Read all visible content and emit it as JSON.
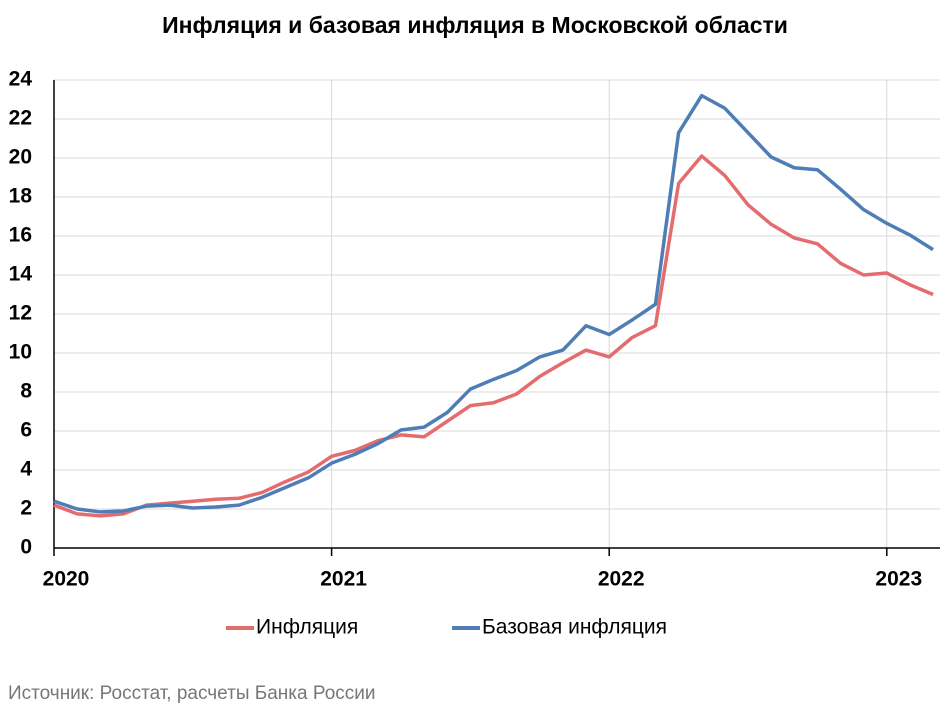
{
  "chart_data": {
    "type": "line",
    "title": "Инфляция и базовая инфляция в Московской области",
    "x": [
      0,
      1,
      2,
      3,
      4,
      5,
      6,
      7,
      8,
      9,
      10,
      11,
      12,
      13,
      14,
      15,
      16,
      17,
      18,
      19,
      20,
      21,
      22,
      23,
      24,
      25,
      26,
      27,
      28,
      29,
      30,
      31,
      32,
      33,
      34,
      35,
      36,
      37,
      38
    ],
    "series": [
      {
        "name": "Инфляция",
        "color": "#e46c6f",
        "values": [
          2.2,
          1.75,
          1.65,
          1.75,
          2.2,
          2.3,
          2.4,
          2.5,
          2.55,
          2.85,
          3.4,
          3.9,
          4.7,
          5.0,
          5.5,
          5.8,
          5.7,
          6.5,
          7.3,
          7.45,
          7.9,
          8.8,
          9.5,
          10.15,
          9.8,
          10.8,
          11.4,
          18.7,
          20.1,
          19.1,
          17.6,
          16.6,
          15.9,
          15.6,
          14.6,
          14.0,
          14.1,
          13.5,
          13.0
        ]
      },
      {
        "name": "Базовая инфляция",
        "color": "#4f7eb7",
        "values": [
          2.4,
          2.0,
          1.85,
          1.9,
          2.15,
          2.2,
          2.05,
          2.1,
          2.2,
          2.6,
          3.1,
          3.6,
          4.35,
          4.8,
          5.35,
          6.05,
          6.2,
          6.95,
          8.15,
          8.65,
          9.1,
          9.8,
          10.15,
          11.4,
          10.95,
          11.7,
          12.5,
          21.3,
          23.2,
          22.55,
          21.3,
          20.05,
          19.5,
          19.4,
          18.4,
          17.35,
          16.65,
          16.05,
          15.3
        ]
      }
    ],
    "xlim": [
      0,
      38.3
    ],
    "xticks": [
      {
        "value": 0,
        "label": "2020"
      },
      {
        "value": 12,
        "label": "2021"
      },
      {
        "value": 24,
        "label": "2022"
      },
      {
        "value": 36,
        "label": "2023"
      }
    ],
    "ylim": [
      0,
      24
    ],
    "yticks": [
      0,
      2,
      4,
      6,
      8,
      10,
      12,
      14,
      16,
      18,
      20,
      22,
      24
    ],
    "grid": true,
    "legend": "bottom",
    "source": "Источник: Росстат, расчеты Банка России"
  }
}
